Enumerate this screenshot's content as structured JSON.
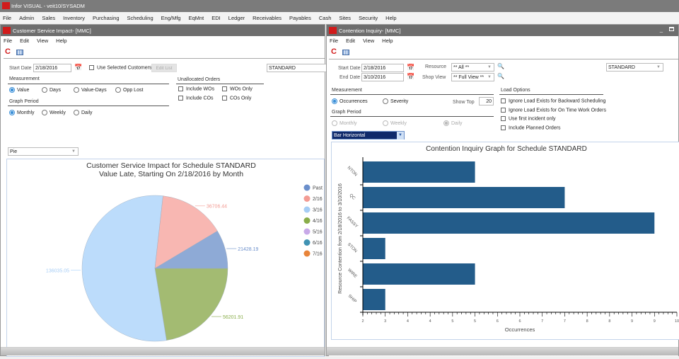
{
  "app": {
    "title": "Infor VISUAL - veit10/SYSADM",
    "logo": "infor",
    "menu": [
      "File",
      "Admin",
      "Sales",
      "Inventory",
      "Purchasing",
      "Scheduling",
      "Eng/Mfg",
      "EqMnt",
      "EDI",
      "Ledger",
      "Receivables",
      "Payables",
      "Cash",
      "Sites",
      "Security",
      "Help"
    ]
  },
  "left": {
    "title": "Customer Service Impact- [MMC]",
    "menu": [
      "File",
      "Edit",
      "View",
      "Help"
    ],
    "start_date_label": "Start Date",
    "start_date": "2/18/2016",
    "use_selected_customers": "Use Selected Customers",
    "use_selected_customers_checked": false,
    "edit_list": "Edit List",
    "schedule": "STANDARD",
    "measurement_label": "Measurement",
    "measurement_options": [
      "Value",
      "Days",
      "Value-Days",
      "Opp Lost"
    ],
    "measurement_selected": "Value",
    "graph_period_label": "Graph Period",
    "period_options": [
      "Monthly",
      "Weekly",
      "Daily"
    ],
    "period_selected": "Monthly",
    "unallocated_label": "Unallocated Orders",
    "unallocated_options": [
      "Include WOs",
      "WOs Only",
      "Include COs",
      "COs Only"
    ],
    "graph_type": "Pie"
  },
  "right": {
    "title": "Contention Inquiry- [MMC]",
    "menu": [
      "File",
      "Edit",
      "View",
      "Help"
    ],
    "start_date_label": "Start Date",
    "start_date": "2/18/2016",
    "end_date_label": "End Date",
    "end_date": "3/10/2016",
    "resource_label": "Resource",
    "resource": "** All **",
    "shop_view_label": "Shop View",
    "shop_view": "** Full View **",
    "schedule": "STANDARD",
    "measurement_label": "Measurement",
    "measurement_options": [
      "Occurrences",
      "Severity"
    ],
    "measurement_selected": "Occurrences",
    "show_top_label": "Show Top",
    "show_top": "20",
    "graph_period_label": "Graph Period",
    "period_options": [
      "Monthly",
      "Weekly",
      "Daily"
    ],
    "period_selected": "Daily",
    "load_options_label": "Load Options",
    "load_options": [
      "Ignore Load Exists for Backward Scheduling",
      "Ignore Load Exists for On Time Work Orders",
      "Use first incident only",
      "Include Planned Orders"
    ],
    "graph_type": "Bar Horizontal"
  },
  "chart_data": [
    {
      "type": "pie",
      "title": "Customer Service Impact for Schedule STANDARD",
      "subtitle": "Value Late, Starting On  2/18/2016 by Month",
      "legend_position": "right",
      "slices": [
        {
          "label": "Past",
          "value": 21428.19,
          "value_label": "21428.19",
          "color": "#8eaad6",
          "legend_color": "#6b8fcb"
        },
        {
          "label": "2/16",
          "value": 36706.44,
          "value_label": "36706.44",
          "color": "#f8b7b2",
          "legend_color": "#f39c94"
        },
        {
          "label": "3/16",
          "value": 136035.05,
          "value_label": "136035.05",
          "color": "#bcdcfb",
          "legend_color": "#a6cdf5"
        },
        {
          "label": "4/16",
          "value": 56201.91,
          "value_label": "56201.91",
          "color": "#a3bb72",
          "legend_color": "#89ad4a"
        },
        {
          "label": "5/16",
          "value": 0,
          "value_label": "",
          "color": "#c8a9e8",
          "legend_color": "#c8a9e8"
        },
        {
          "label": "6/16",
          "value": 0,
          "value_label": "",
          "color": "#3f92b3",
          "legend_color": "#3f92b3"
        },
        {
          "label": "7/16",
          "value": 0,
          "value_label": "",
          "color": "#e8843a",
          "legend_color": "#e8843a"
        }
      ]
    },
    {
      "type": "bar",
      "orientation": "horizontal",
      "title": "Contention Inquiry Graph for Schedule STANDARD",
      "xlabel": "Occurrences",
      "ylabel": "Resource Contention from 2/18/2016 to 3/10/2016",
      "categories": [
        "NTON",
        "QC",
        "FASSY",
        "STON",
        "WIRE",
        "SHIP"
      ],
      "values": [
        5,
        7,
        9,
        3,
        5,
        3
      ],
      "xlim": [
        2.5,
        9.5
      ],
      "x_tick_labels": [
        "2",
        "3",
        "4",
        "4",
        "5",
        "5",
        "6",
        "6",
        "7",
        "7",
        "8",
        "8",
        "9",
        "9",
        "10"
      ],
      "bar_color": "#235c8a"
    }
  ]
}
